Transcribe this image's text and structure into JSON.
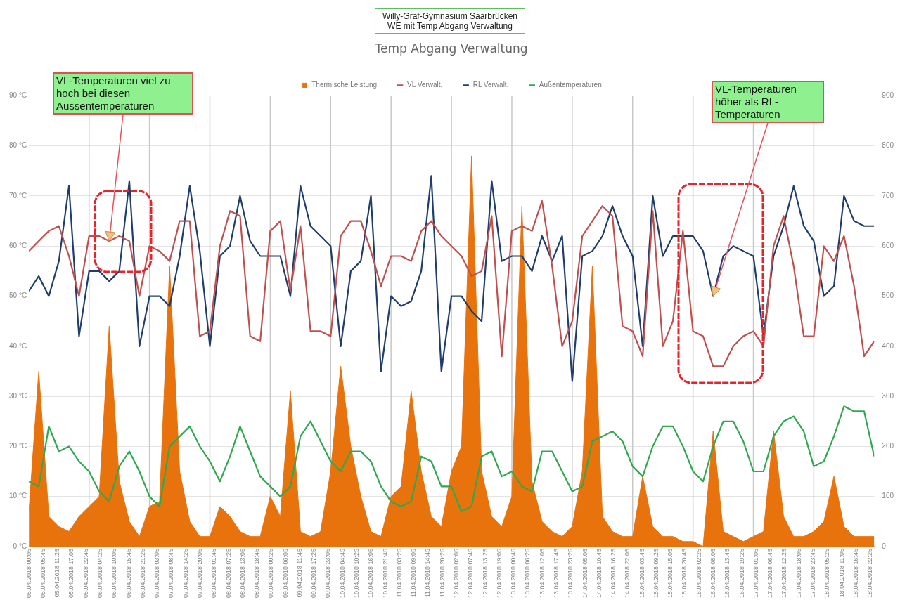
{
  "chart_data": {
    "type": "line",
    "title": "Temp Abgang Verwaltung",
    "subtitle": "Willy-Graf-Gymnasium Saarbrücken\nWE mit Temp Abgang Verwaltung",
    "x": [
      "2018-04-05T00:05",
      "2018-04-05T04:00",
      "2018-04-05T08:00",
      "2018-04-05T12:00",
      "2018-04-05T16:00",
      "2018-04-05T20:00",
      "2018-04-06T00:00",
      "2018-04-06T04:00",
      "2018-04-06T08:00",
      "2018-04-06T12:00",
      "2018-04-06T16:00",
      "2018-04-06T20:00",
      "2018-04-07T00:00",
      "2018-04-07T04:00",
      "2018-04-07T08:00",
      "2018-04-07T12:00",
      "2018-04-07T16:00",
      "2018-04-07T20:00",
      "2018-04-08T00:00",
      "2018-04-08T04:00",
      "2018-04-08T08:00",
      "2018-04-08T12:00",
      "2018-04-08T16:00",
      "2018-04-08T20:00",
      "2018-04-09T00:00",
      "2018-04-09T04:00",
      "2018-04-09T08:00",
      "2018-04-09T12:00",
      "2018-04-09T16:00",
      "2018-04-09T20:00",
      "2018-04-10T00:00",
      "2018-04-10T04:00",
      "2018-04-10T08:00",
      "2018-04-10T12:00",
      "2018-04-10T16:00",
      "2018-04-10T20:00",
      "2018-04-11T00:00",
      "2018-04-11T04:00",
      "2018-04-11T08:00",
      "2018-04-11T12:00",
      "2018-04-11T16:00",
      "2018-04-11T20:00",
      "2018-04-12T00:00",
      "2018-04-12T04:00",
      "2018-04-12T08:00",
      "2018-04-12T12:00",
      "2018-04-12T16:00",
      "2018-04-12T20:00",
      "2018-04-13T00:00",
      "2018-04-13T04:00",
      "2018-04-13T08:00",
      "2018-04-13T12:00",
      "2018-04-13T16:00",
      "2018-04-13T20:00",
      "2018-04-14T00:00",
      "2018-04-14T04:00",
      "2018-04-14T08:00",
      "2018-04-14T12:00",
      "2018-04-14T16:00",
      "2018-04-14T20:00",
      "2018-04-15T00:00",
      "2018-04-15T04:00",
      "2018-04-15T08:00",
      "2018-04-15T12:00",
      "2018-04-15T16:00",
      "2018-04-15T20:00",
      "2018-04-16T00:00",
      "2018-04-16T04:00",
      "2018-04-16T08:00",
      "2018-04-16T12:00",
      "2018-04-16T16:00",
      "2018-04-16T20:00",
      "2018-04-17T00:00",
      "2018-04-17T04:00",
      "2018-04-17T08:00",
      "2018-04-17T12:00",
      "2018-04-17T16:00",
      "2018-04-17T20:00",
      "2018-04-18T00:00",
      "2018-04-18T04:00",
      "2018-04-18T08:00",
      "2018-04-18T12:00",
      "2018-04-18T16:00",
      "2018-04-18T20:00",
      "2018-04-19T00:00"
    ],
    "series": [
      {
        "name": "Thermische Leistung",
        "type": "area",
        "axis": "y2",
        "color": "#e8720c",
        "values": [
          70,
          350,
          60,
          40,
          30,
          60,
          80,
          100,
          440,
          130,
          50,
          20,
          80,
          90,
          560,
          150,
          50,
          20,
          20,
          80,
          60,
          30,
          20,
          20,
          100,
          60,
          310,
          30,
          20,
          30,
          150,
          360,
          200,
          100,
          30,
          20,
          100,
          120,
          310,
          150,
          60,
          40,
          150,
          200,
          780,
          150,
          60,
          40,
          100,
          680,
          130,
          50,
          30,
          20,
          40,
          150,
          560,
          60,
          30,
          20,
          20,
          140,
          40,
          20,
          20,
          10,
          10,
          0,
          230,
          30,
          20,
          10,
          20,
          30,
          230,
          60,
          20,
          20,
          30,
          50,
          140,
          40,
          20,
          20,
          20
        ]
      },
      {
        "name": "VL Verwalt.",
        "type": "line",
        "color": "#c0504d",
        "values": [
          59,
          61,
          63,
          64,
          58,
          50,
          62,
          62,
          61,
          62,
          61,
          50,
          60,
          59,
          57,
          65,
          65,
          42,
          43,
          60,
          67,
          66,
          42,
          41,
          63,
          65,
          51,
          64,
          43,
          43,
          42,
          62,
          65,
          65,
          59,
          52,
          58,
          58,
          57,
          63,
          65,
          62,
          60,
          58,
          54,
          55,
          66,
          38,
          63,
          64,
          63,
          69,
          56,
          40,
          45,
          62,
          65,
          68,
          66,
          44,
          43,
          38,
          67,
          40,
          45,
          63,
          43,
          42,
          36,
          36,
          40,
          42,
          43,
          40,
          60,
          66,
          56,
          42,
          42,
          60,
          57,
          62,
          52,
          38,
          41
        ]
      },
      {
        "name": "RL Verwalt.",
        "type": "line",
        "color": "#1f3e6e",
        "values": [
          51,
          54,
          50,
          57,
          72,
          42,
          55,
          55,
          53,
          55,
          73,
          40,
          50,
          50,
          48,
          58,
          72,
          59,
          40,
          58,
          60,
          70,
          61,
          58,
          58,
          58,
          50,
          72,
          64,
          62,
          60,
          40,
          55,
          57,
          70,
          35,
          50,
          48,
          49,
          55,
          74,
          35,
          50,
          50,
          47,
          45,
          73,
          57,
          58,
          58,
          55,
          62,
          57,
          62,
          33,
          58,
          59,
          62,
          68,
          62,
          58,
          40,
          70,
          58,
          62,
          62,
          62,
          59,
          50,
          58,
          60,
          59,
          58,
          42,
          58,
          64,
          72,
          64,
          61,
          50,
          52,
          70,
          65,
          64,
          64
        ]
      },
      {
        "name": "Außentemperaturen",
        "type": "line",
        "color": "#2fa84f",
        "values": [
          13,
          12,
          24,
          19,
          20,
          17,
          15,
          11,
          9,
          16,
          19,
          15,
          10,
          8,
          20,
          22,
          24,
          20,
          17,
          13,
          18,
          24,
          19,
          14,
          12,
          10,
          12,
          22,
          25,
          21,
          17,
          15,
          19,
          19,
          17,
          12,
          9,
          8,
          9,
          18,
          17,
          12,
          12,
          7,
          8,
          18,
          19,
          14,
          15,
          12,
          11,
          19,
          19,
          15,
          11,
          12,
          21,
          22,
          23,
          21,
          16,
          14,
          20,
          24,
          24,
          20,
          15,
          13,
          20,
          25,
          25,
          21,
          15,
          15,
          22,
          25,
          26,
          23,
          16,
          17,
          22,
          28,
          27,
          27,
          18
        ]
      }
    ],
    "xlim": [
      "2018-04-05T00:05",
      "2018-04-19T00:00"
    ],
    "xticks": [
      {
        "value": "2018-04-05T00:05",
        "label": "05.04.2018 00:05"
      },
      {
        "value": "2018-04-05T05:45",
        "label": "05.04.2018 05:45"
      },
      {
        "value": "2018-04-05T11:25",
        "label": "05.04.2018 11:25"
      },
      {
        "value": "2018-04-05T17:05",
        "label": "05.04.2018 17:05"
      },
      {
        "value": "2018-04-05T22:45",
        "label": "05.04.2018 22:45"
      },
      {
        "value": "2018-04-06T04:25",
        "label": "06.04.2018 04:25"
      },
      {
        "value": "2018-04-06T10:05",
        "label": "06.04.2018 10:05"
      },
      {
        "value": "2018-04-06T15:45",
        "label": "06.04.2018 15:45"
      },
      {
        "value": "2018-04-06T21:25",
        "label": "06.04.2018 21:25"
      },
      {
        "value": "2018-04-07T03:05",
        "label": "07.04.2018 03:05"
      },
      {
        "value": "2018-04-07T08:45",
        "label": "07.04.2018 08:45"
      },
      {
        "value": "2018-04-07T14:25",
        "label": "07.04.2018 14:25"
      },
      {
        "value": "2018-04-07T20:05",
        "label": "07.04.2018 20:05"
      },
      {
        "value": "2018-04-08T01:45",
        "label": "08.04.2018 01:45"
      },
      {
        "value": "2018-04-08T07:25",
        "label": "08.04.2018 07:25"
      },
      {
        "value": "2018-04-08T13:05",
        "label": "08.04.2018 13:05"
      },
      {
        "value": "2018-04-08T18:45",
        "label": "08.04.2018 18:45"
      },
      {
        "value": "2018-04-09T00:25",
        "label": "09.04.2018 00:25"
      },
      {
        "value": "2018-04-09T06:05",
        "label": "09.04.2018 06:05"
      },
      {
        "value": "2018-04-09T11:45",
        "label": "09.04.2018 11:45"
      },
      {
        "value": "2018-04-09T17:25",
        "label": "09.04.2018 17:25"
      },
      {
        "value": "2018-04-09T23:05",
        "label": "09.04.2018 23:05"
      },
      {
        "value": "2018-04-10T04:45",
        "label": "10.04.2018 04:45"
      },
      {
        "value": "2018-04-10T10:25",
        "label": "10.04.2018 10:25"
      },
      {
        "value": "2018-04-10T16:05",
        "label": "10.04.2018 16:05"
      },
      {
        "value": "2018-04-10T21:45",
        "label": "10.04.2018 21:45"
      },
      {
        "value": "2018-04-11T03:25",
        "label": "11.04.2018 03:25"
      },
      {
        "value": "2018-04-11T09:05",
        "label": "11.04.2018 09:05"
      },
      {
        "value": "2018-04-11T14:45",
        "label": "11.04.2018 14:45"
      },
      {
        "value": "2018-04-11T20:25",
        "label": "11.04.2018 20:25"
      },
      {
        "value": "2018-04-12T02:05",
        "label": "12.04.2018 02:05"
      },
      {
        "value": "2018-04-12T07:45",
        "label": "12.04.2018 07:45"
      },
      {
        "value": "2018-04-12T13:25",
        "label": "12.04.2018 13:25"
      },
      {
        "value": "2018-04-12T19:05",
        "label": "12.04.2018 19:05"
      },
      {
        "value": "2018-04-13T00:45",
        "label": "13.04.2018 00:45"
      },
      {
        "value": "2018-04-13T06:25",
        "label": "13.04.2018 06:25"
      },
      {
        "value": "2018-04-13T12:05",
        "label": "13.04.2018 12:05"
      },
      {
        "value": "2018-04-13T17:45",
        "label": "13.04.2018 17:45"
      },
      {
        "value": "2018-04-13T23:25",
        "label": "13.04.2018 23:25"
      },
      {
        "value": "2018-04-14T05:05",
        "label": "14.04.2018 05:05"
      },
      {
        "value": "2018-04-14T10:45",
        "label": "14.04.2018 10:45"
      },
      {
        "value": "2018-04-14T16:25",
        "label": "14.04.2018 16:25"
      },
      {
        "value": "2018-04-14T22:05",
        "label": "14.04.2018 22:05"
      },
      {
        "value": "2018-04-15T03:45",
        "label": "15.04.2018 03:45"
      },
      {
        "value": "2018-04-15T09:25",
        "label": "15.04.2018 09:25"
      },
      {
        "value": "2018-04-15T15:05",
        "label": "15.04.2018 15:05"
      },
      {
        "value": "2018-04-15T20:45",
        "label": "15.04.2018 20:45"
      },
      {
        "value": "2018-04-16T02:25",
        "label": "16.04.2018 02:25"
      },
      {
        "value": "2018-04-16T08:05",
        "label": "16.04.2018 08:05"
      },
      {
        "value": "2018-04-16T13:45",
        "label": "16.04.2018 13:45"
      },
      {
        "value": "2018-04-16T19:25",
        "label": "16.04.2018 19:25"
      },
      {
        "value": "2018-04-17T01:05",
        "label": "17.04.2018 01:05"
      },
      {
        "value": "2018-04-17T06:45",
        "label": "17.04.2018 06:45"
      },
      {
        "value": "2018-04-17T12:25",
        "label": "17.04.2018 12:25"
      },
      {
        "value": "2018-04-17T18:05",
        "label": "17.04.2018 18:05"
      },
      {
        "value": "2018-04-17T23:45",
        "label": "17.04.2018 23:45"
      },
      {
        "value": "2018-04-18T05:25",
        "label": "18.04.2018 05:25"
      },
      {
        "value": "2018-04-18T11:05",
        "label": "18.04.2018 11:05"
      },
      {
        "value": "2018-04-18T16:45",
        "label": "18.04.2018 16:45"
      },
      {
        "value": "2018-04-18T22:25",
        "label": "18.04.2018 22:25"
      }
    ],
    "ylim": [
      0,
      90
    ],
    "yticks": [
      {
        "value": 0,
        "label": "0 °C"
      },
      {
        "value": 10,
        "label": "10 °C"
      },
      {
        "value": 20,
        "label": "20 °C"
      },
      {
        "value": 30,
        "label": "30 °C"
      },
      {
        "value": 40,
        "label": "40 °C"
      },
      {
        "value": 50,
        "label": "50 °C"
      },
      {
        "value": 60,
        "label": "60 °C"
      },
      {
        "value": 70,
        "label": "70 °C"
      },
      {
        "value": 80,
        "label": "80 °C"
      },
      {
        "value": 90,
        "label": "90 °C"
      }
    ],
    "y2lim": [
      0,
      900
    ],
    "y2ticks": [
      0,
      100,
      200,
      300,
      400,
      500,
      600,
      700,
      800,
      900
    ],
    "grid": "y",
    "legend": "top",
    "marker": "none",
    "line_style": "solid",
    "ref_lines": [
      {
        "axis": "x",
        "value": "2018-04-06T00:00",
        "color": "#c8c8c8"
      },
      {
        "axis": "x",
        "value": "2018-04-07T00:00",
        "color": "#c8c8c8"
      },
      {
        "axis": "x",
        "value": "2018-04-08T00:00",
        "color": "#c8c8c8"
      },
      {
        "axis": "x",
        "value": "2018-04-09T00:00",
        "color": "#c8c8c8"
      },
      {
        "axis": "x",
        "value": "2018-04-10T00:00",
        "color": "#c8c8c8"
      },
      {
        "axis": "x",
        "value": "2018-04-11T00:00",
        "color": "#c8c8c8"
      },
      {
        "axis": "x",
        "value": "2018-04-12T00:00",
        "color": "#c8c8c8"
      },
      {
        "axis": "x",
        "value": "2018-04-13T00:00",
        "color": "#c8c8c8"
      },
      {
        "axis": "x",
        "value": "2018-04-14T00:00",
        "color": "#c8c8c8"
      },
      {
        "axis": "x",
        "value": "2018-04-15T00:00",
        "color": "#c8c8c8"
      },
      {
        "axis": "x",
        "value": "2018-04-16T00:00",
        "color": "#c8c8c8"
      },
      {
        "axis": "x",
        "value": "2018-04-17T00:00",
        "color": "#c8c8c8"
      },
      {
        "axis": "x",
        "value": "2018-04-18T00:00",
        "color": "#c8c8c8"
      }
    ],
    "annotations": [
      {
        "text": "VL-Temperaturen viel zu hoch bei diesen Aussentemperaturen",
        "x": "2018-04-06T08:00",
        "y": 61
      },
      {
        "text": "VL-Temperaturen höher als RL-Temperaturen",
        "x": "2018-04-16T08:00",
        "y": 50
      }
    ]
  }
}
